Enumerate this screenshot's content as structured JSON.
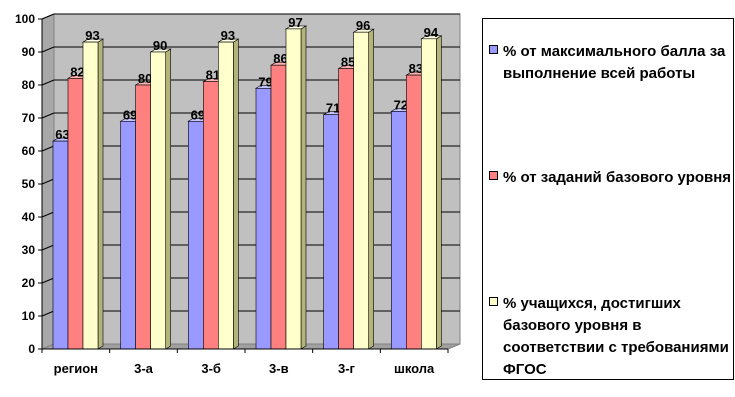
{
  "chart_data": {
    "type": "bar",
    "categories": [
      "регион",
      "3-а",
      "3-б",
      "3-в",
      "3-г",
      "школа"
    ],
    "series": [
      {
        "name": "% от максимального балла за выполнение всей работы",
        "values": [
          63,
          69,
          69,
          79,
          71,
          72
        ],
        "color": "#9999ff",
        "side": "#5a5acc",
        "top": "#c4c4ff"
      },
      {
        "name": "% от заданий базового уровня",
        "values": [
          82,
          80,
          81,
          86,
          85,
          83
        ],
        "color": "#ff8080",
        "side": "#c24c4c",
        "top": "#ffb3b3"
      },
      {
        "name": "% учащихся, достигших базового уровня в соответствии с требованиями ФГОС",
        "values": [
          93,
          90,
          93,
          97,
          96,
          94
        ],
        "color": "#ffffcc",
        "side": "#b3b37a",
        "top": "#ffffe6"
      }
    ],
    "yticks": [
      0,
      10,
      20,
      30,
      40,
      50,
      60,
      70,
      80,
      90,
      100
    ],
    "ylim": [
      0,
      100
    ],
    "grid": true,
    "legend_position": "right",
    "wall_color": "#c0c0c0",
    "title": "",
    "xlabel": "",
    "ylabel": ""
  }
}
